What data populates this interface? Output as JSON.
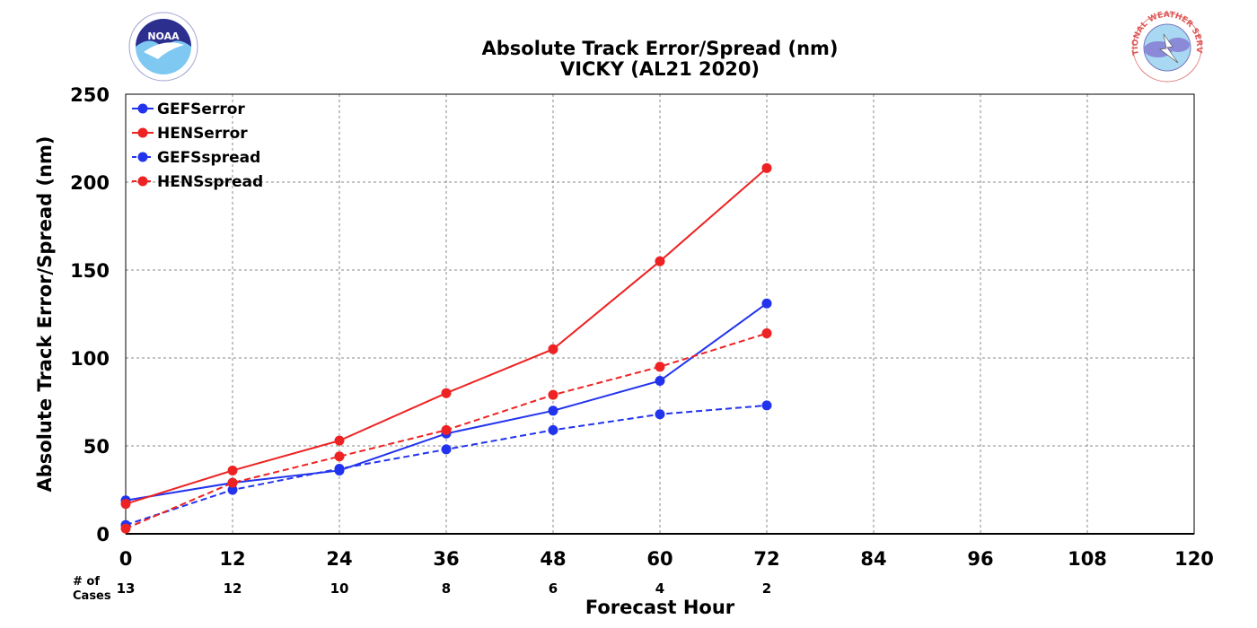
{
  "chart_data": {
    "type": "line",
    "title": "Absolute Track Error/Spread (nm)",
    "subtitle": "VICKY (AL21 2020)",
    "xlabel": "Forecast Hour",
    "ylabel": "Absolute Track Error/Spread (nm)",
    "xlim": [
      0,
      120
    ],
    "ylim": [
      0,
      250
    ],
    "xticks": [
      0,
      12,
      24,
      36,
      48,
      60,
      72,
      84,
      96,
      108,
      120
    ],
    "yticks": [
      0,
      50,
      100,
      150,
      200,
      250
    ],
    "grid": true,
    "legend_position": "top-left",
    "x": [
      0,
      12,
      24,
      36,
      48,
      60,
      72
    ],
    "series": [
      {
        "name": "GEFSerror",
        "color": "#2233ee",
        "dash": "solid",
        "values": [
          19,
          29,
          36,
          57,
          70,
          87,
          131
        ]
      },
      {
        "name": "HENSerror",
        "color": "#ee2222",
        "dash": "solid",
        "values": [
          17,
          36,
          53,
          80,
          105,
          155,
          208
        ]
      },
      {
        "name": "GEFSspread",
        "color": "#2233ee",
        "dash": "dashed",
        "values": [
          5,
          25,
          37,
          48,
          59,
          68,
          73
        ]
      },
      {
        "name": "HENSspread",
        "color": "#ee2222",
        "dash": "dashed",
        "values": [
          3,
          29,
          44,
          59,
          79,
          95,
          114
        ]
      }
    ],
    "cases": {
      "header_line1": "# of",
      "header_line2": "Cases",
      "x": [
        0,
        12,
        24,
        36,
        48,
        60,
        72
      ],
      "values": [
        "13",
        "12",
        "10",
        "8",
        "6",
        "4",
        "2"
      ]
    }
  },
  "logos": {
    "noaa_text": "NOAA",
    "nws_text": "NATIONAL WEATHER SERVICE"
  }
}
